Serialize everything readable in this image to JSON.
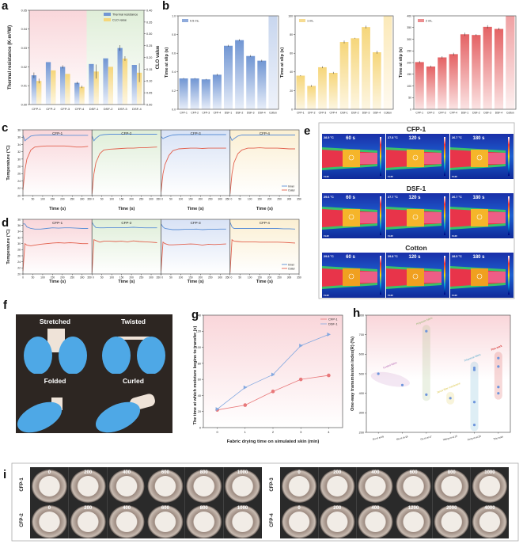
{
  "panel_letters": [
    "a",
    "b",
    "c",
    "d",
    "e",
    "f",
    "g",
    "h",
    "i"
  ],
  "colors": {
    "blue": "#6f93d2",
    "yellow": "#f5d77a",
    "red": "#e8686a",
    "inner": "#5b8fd6",
    "outer": "#e2614e",
    "pink_bg": "#f9d9dc",
    "green_bg": "#e3efdc",
    "blue_bg": "#dfe6f6",
    "yellow_bg": "#fbf1d8"
  },
  "chart_data": [
    {
      "id": "a",
      "type": "bar",
      "categories": [
        "CFP-1",
        "CFP-2",
        "CFP-3",
        "CFP-4",
        "DSF-1",
        "DSF-2",
        "DSF-3",
        "DSF-4"
      ],
      "series": [
        {
          "name": "Thermal resistance",
          "axis": "left",
          "values": [
            0.0155,
            0.0225,
            0.02,
            0.0115,
            0.0215,
            0.0245,
            0.03,
            0.021
          ],
          "errors": [
            0.0015,
            0.0,
            0.0008,
            0.0006,
            0.0,
            0.0,
            0.0015,
            0.0
          ]
        },
        {
          "name": "CLO value",
          "axis": "right",
          "values": [
            0.1,
            0.145,
            0.13,
            0.075,
            0.14,
            0.16,
            0.195,
            0.135
          ],
          "errors": [
            0.01,
            0.0,
            0.0,
            0.005,
            0.03,
            0.0,
            0.01,
            0.04
          ]
        }
      ],
      "ylabel": "Thermal resistance (K·m²/W)",
      "ylabel_right": "CLO value",
      "ylim": [
        0,
        0.05
      ],
      "yticks": [
        "0.00",
        "0.01",
        "0.02",
        "0.03",
        "0.04",
        "0.05"
      ],
      "ylim_right": [
        0,
        0.4
      ],
      "yticks_right": [
        "0.00",
        "0.05",
        "0.10",
        "0.15",
        "0.20",
        "0.25",
        "0.30",
        "0.35",
        "0.40"
      ],
      "legend": "top-right"
    },
    {
      "id": "b1",
      "type": "bar",
      "categories": [
        "CFP-1",
        "CFP-2",
        "CFP-3",
        "CFP-4",
        "DSF-1",
        "DSF-2",
        "DSF-3",
        "DSF-4",
        "Cotton"
      ],
      "series": [
        {
          "name": "0.5 mL",
          "values": [
            0.33,
            0.33,
            0.32,
            0.37,
            0.68,
            0.74,
            0.57,
            0.52,
            1.0
          ],
          "errors": [
            0.005,
            0.005,
            0.005,
            0.01,
            0.01,
            0.01,
            0.01,
            0.01,
            0
          ]
        }
      ],
      "ylabel": "Time at slip (s)",
      "ylim": [
        0,
        1.0
      ],
      "yticks": [
        "0.0",
        "0.2",
        "0.4",
        "0.6",
        "0.8",
        "1.0"
      ],
      "legend": "top-left"
    },
    {
      "id": "b2",
      "type": "bar",
      "categories": [
        "CFP-1",
        "CFP-2",
        "CFP-3",
        "CFP-4",
        "DSF-1",
        "DSF-2",
        "DSF-3",
        "DSF-4",
        "Cotton"
      ],
      "series": [
        {
          "name": "1 mL",
          "values": [
            36,
            25,
            45,
            39,
            72,
            76,
            88,
            61,
            100
          ],
          "errors": [
            0.5,
            1,
            1,
            1,
            1.5,
            0.5,
            1.5,
            1.5,
            0
          ]
        }
      ],
      "ylabel": "Time at slip (s)",
      "ylim": [
        0,
        100
      ],
      "yticks": [
        "0",
        "20",
        "40",
        "60",
        "80",
        "100"
      ],
      "legend": "top-left"
    },
    {
      "id": "b3",
      "type": "bar",
      "categories": [
        "CFP-1",
        "CFP-2",
        "CFP-3",
        "CFP-4",
        "DSF-1",
        "DSF-2",
        "DSF-3",
        "DSF-4",
        "Cotton"
      ],
      "series": [
        {
          "name": "2 mL",
          "values": [
            202,
            183,
            222,
            236,
            321,
            318,
            353,
            344,
            400
          ],
          "errors": [
            5,
            4,
            5,
            6,
            7,
            4,
            7,
            5,
            0
          ]
        }
      ],
      "ylabel": "Time at slip (s)",
      "ylim": [
        0,
        400
      ],
      "yticks": [
        "0",
        "50",
        "100",
        "150",
        "200",
        "250",
        "300",
        "350",
        "400"
      ],
      "legend": "top-left"
    },
    {
      "id": "c",
      "type": "line",
      "ylabel": "Temperature (°C)",
      "xlabel": "Time (s)",
      "ylim": [
        20,
        38
      ],
      "yticks": [
        "20",
        "22",
        "24",
        "26",
        "28",
        "30",
        "32",
        "34",
        "36",
        "38"
      ],
      "xlim": [
        0,
        350
      ],
      "xticks": [
        "0",
        "50",
        "100",
        "150",
        "200",
        "250",
        "300",
        "350"
      ],
      "x": [
        0,
        10,
        20,
        40,
        60,
        90,
        120,
        150,
        180,
        210,
        240,
        270,
        300,
        330
      ],
      "legend": [
        "Inner",
        "Outer"
      ],
      "subplots": [
        {
          "title": "CFP-1",
          "inner": [
            36.5,
            35.0,
            35.5,
            36.3,
            36.5,
            36.6,
            36.6,
            36.6,
            36.6,
            36.5,
            36.5,
            36.5,
            36.5,
            36.5
          ],
          "outer": [
            21.5,
            27.0,
            30.0,
            32.5,
            33.3,
            33.5,
            33.6,
            33.6,
            33.6,
            33.6,
            33.5,
            33.3,
            33.3,
            33.5
          ]
        },
        {
          "title": "CFP-2",
          "inner": [
            36.3,
            35.0,
            35.7,
            36.5,
            36.7,
            36.8,
            36.8,
            36.8,
            36.8,
            36.8,
            36.8,
            36.8,
            36.8,
            36.8
          ],
          "outer": [
            20.5,
            26.0,
            29.0,
            31.5,
            32.5,
            32.7,
            32.8,
            32.9,
            33.0,
            33.0,
            33.1,
            33.1,
            33.2,
            33.3
          ]
        },
        {
          "title": "CFP-3",
          "inner": [
            36.2,
            35.6,
            35.9,
            36.3,
            36.6,
            36.7,
            36.7,
            36.7,
            36.7,
            36.7,
            36.7,
            36.7,
            36.7,
            36.7
          ],
          "outer": [
            21.0,
            26.0,
            28.5,
            31.0,
            32.3,
            32.8,
            32.9,
            33.0,
            33.0,
            32.9,
            33.0,
            33.0,
            33.0,
            33.0
          ]
        },
        {
          "title": "CFP-4",
          "inner": [
            36.3,
            35.1,
            35.6,
            36.3,
            36.6,
            36.6,
            36.6,
            36.6,
            36.6,
            36.6,
            36.6,
            36.6,
            36.6,
            36.6
          ],
          "outer": [
            20.5,
            26.0,
            29.0,
            31.5,
            32.5,
            33.0,
            33.0,
            33.1,
            33.0,
            33.0,
            33.0,
            32.9,
            32.8,
            32.8
          ]
        }
      ]
    },
    {
      "id": "d",
      "type": "line",
      "ylabel": "Temperature (°C)",
      "xlabel": "Time (s)",
      "ylim": [
        20,
        38
      ],
      "yticks": [
        "20",
        "22",
        "24",
        "26",
        "28",
        "30",
        "32",
        "34",
        "36",
        "38"
      ],
      "xlim": [
        0,
        350
      ],
      "xticks": [
        "0",
        "50",
        "100",
        "150",
        "200",
        "250",
        "300",
        "350"
      ],
      "x": [
        0,
        10,
        20,
        40,
        60,
        90,
        120,
        150,
        180,
        210,
        240,
        270,
        300,
        330
      ],
      "legend": [
        "Inner",
        "Outer"
      ],
      "subplots": [
        {
          "title": "CFP-1",
          "inner": [
            36.5,
            36.5,
            35.5,
            35.0,
            34.8,
            34.8,
            35.0,
            35.2,
            35.1,
            35.2,
            35.2,
            35.1,
            35.0,
            35.0
          ],
          "outer": [
            21.0,
            30.0,
            29.5,
            29.3,
            29.5,
            29.8,
            30.0,
            30.2,
            30.3,
            30.2,
            30.3,
            30.2,
            30.0,
            30.0
          ]
        },
        {
          "title": "CFP-2",
          "inner": [
            37.0,
            36.0,
            35.3,
            35.2,
            35.2,
            35.3,
            35.3,
            35.3,
            35.3,
            35.4,
            35.3,
            35.2,
            35.2,
            35.2
          ],
          "outer": [
            20.5,
            31.3,
            31.0,
            30.5,
            30.8,
            30.8,
            30.7,
            30.8,
            30.6,
            30.9,
            30.7,
            30.6,
            30.5,
            30.3
          ]
        },
        {
          "title": "CFP-3",
          "inner": [
            36.5,
            35.5,
            35.0,
            34.8,
            34.6,
            34.6,
            34.7,
            34.7,
            34.8,
            34.6,
            34.7,
            34.7,
            34.8,
            34.8
          ],
          "outer": [
            21.0,
            30.5,
            30.0,
            29.6,
            29.6,
            29.7,
            29.8,
            29.9,
            29.8,
            29.5,
            29.8,
            29.7,
            29.8,
            29.9
          ]
        },
        {
          "title": "CFP-4",
          "inner": [
            37.0,
            35.5,
            35.0,
            35.0,
            35.0,
            35.0,
            35.0,
            35.0,
            35.0,
            35.0,
            35.0,
            34.9,
            34.9,
            34.8
          ],
          "outer": [
            20.5,
            31.3,
            30.8,
            30.7,
            30.6,
            30.6,
            30.6,
            30.5,
            30.5,
            30.5,
            30.5,
            30.4,
            30.3,
            30.2
          ]
        }
      ]
    },
    {
      "id": "g",
      "type": "line",
      "x": [
        0,
        1,
        2,
        3,
        4
      ],
      "series": [
        {
          "name": "CFP-1",
          "values": [
            22,
            28,
            45,
            60,
            65
          ]
        },
        {
          "name": "DSF-1",
          "values": [
            23,
            50,
            66,
            102,
            116
          ]
        }
      ],
      "xlabel": "Fabric drying time on simulated skin (min)",
      "ylabel": "The time at which moisture begins to transfer (s)",
      "ylim": [
        0,
        140
      ],
      "yticks": [
        "0",
        "20",
        "40",
        "60",
        "80",
        "100",
        "120",
        "140"
      ],
      "xticks": [
        "0",
        "1",
        "2",
        "3",
        "4"
      ],
      "legend": "top-right"
    },
    {
      "id": "h",
      "type": "scatter",
      "categories": [
        "Gu et al.16",
        "Ma et al.18",
        "Ou et al.17",
        "Wang et al.19",
        "Zeng et al.20",
        "This work"
      ],
      "ylabel": "One-way transmission index(R) (%)",
      "ylim": [
        200,
        800
      ],
      "yticks": [
        "200",
        "300",
        "400",
        "500",
        "600",
        "700",
        "800"
      ],
      "points": [
        {
          "category": 0,
          "y": 500
        },
        {
          "category": 1,
          "y": 442
        },
        {
          "category": 2,
          "y": 718
        },
        {
          "category": 2,
          "y": 393
        },
        {
          "category": 3,
          "y": 375
        },
        {
          "category": 4,
          "y": 530
        },
        {
          "category": 4,
          "y": 520
        },
        {
          "category": 4,
          "y": 355
        },
        {
          "category": 4,
          "y": 238
        },
        {
          "category": 5,
          "y": 580
        },
        {
          "category": 5,
          "y": 537
        },
        {
          "category": 5,
          "y": 432
        },
        {
          "category": 5,
          "y": 400
        }
      ],
      "groups": [
        {
          "label": "Coated fabric",
          "color": "#b05fb0"
        },
        {
          "label": "Polyester fabric",
          "color": "#8fb36a"
        },
        {
          "label": "Janus fiber membrane",
          "color": "#d8c23a"
        },
        {
          "label": "Trilaminar fabric",
          "color": "#4aa3c8"
        },
        {
          "label": "This work",
          "color": "#d42a2a"
        }
      ]
    }
  ],
  "thermal_images": {
    "rows": [
      {
        "title": "CFP-1",
        "temps": [
          "28.5 °C",
          "27.8 °C",
          "26.7 °C"
        ]
      },
      {
        "title": "DSF-1",
        "temps": [
          "29.6 °C",
          "27.7 °C",
          "26.7 °C"
        ]
      },
      {
        "title": "Cotton",
        "temps": [
          "29.8 °C",
          "29.8 °C",
          "28.5 °C"
        ]
      }
    ],
    "times": [
      "60 s",
      "120 s",
      "180 s"
    ],
    "logo": "FLIR"
  },
  "photos": {
    "labels": [
      "Stretched",
      "Twisted",
      "Folded",
      "Curled"
    ]
  },
  "abrasion": {
    "left": [
      {
        "label": "CFP-1",
        "cycles": [
          "0",
          "200",
          "400",
          "600",
          "800",
          "1000"
        ]
      },
      {
        "label": "CFP-2",
        "cycles": [
          "0",
          "200",
          "400",
          "600",
          "800",
          "1000"
        ]
      }
    ],
    "right": [
      {
        "label": "CFP-3",
        "cycles": [
          "0",
          "200",
          "400",
          "600",
          "800",
          "1000"
        ]
      },
      {
        "label": "CFP-4",
        "cycles": [
          "0",
          "200",
          "400",
          "1200",
          "2000",
          "4000"
        ]
      }
    ]
  }
}
